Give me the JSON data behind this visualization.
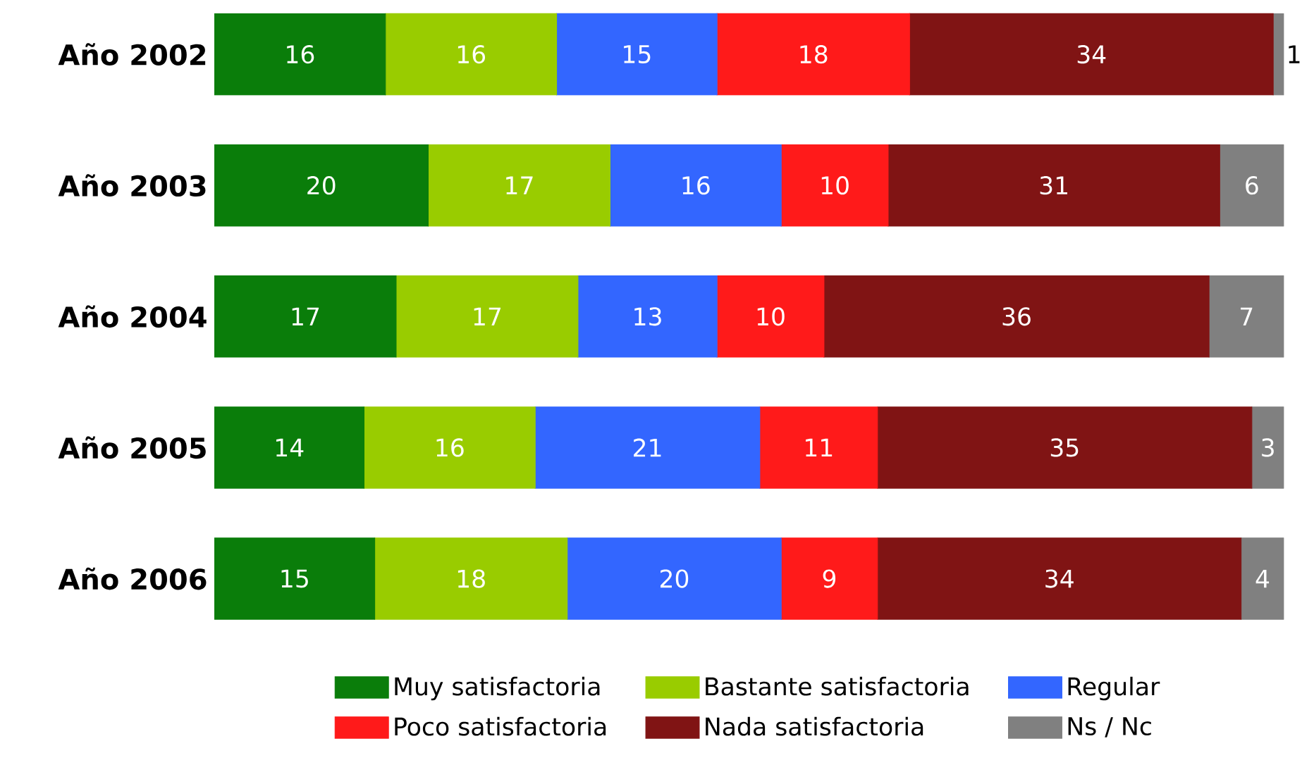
{
  "chart_data": {
    "type": "bar",
    "orientation": "horizontal",
    "stacked": true,
    "data_labels": true,
    "legend": "bottom",
    "tick_labels": "y",
    "categories": [
      "Año 2002",
      "Año 2003",
      "Año 2004",
      "Año 2005",
      "Año 2006"
    ],
    "series": [
      {
        "name": "Muy satisfactoria",
        "color": "#0a7d0a",
        "values": [
          16,
          20,
          17,
          14,
          15
        ]
      },
      {
        "name": "Bastante satisfactoria",
        "color": "#99cc00",
        "values": [
          16,
          17,
          17,
          16,
          18
        ]
      },
      {
        "name": "Regular",
        "color": "#3366ff",
        "values": [
          15,
          16,
          13,
          21,
          20
        ]
      },
      {
        "name": "Poco satisfactoria",
        "color": "#ff1a1a",
        "values": [
          18,
          10,
          10,
          11,
          9
        ]
      },
      {
        "name": "Nada satisfactoria",
        "color": "#801414",
        "values": [
          34,
          31,
          36,
          35,
          34
        ]
      },
      {
        "name": "Ns / Nc",
        "color": "#808080",
        "values": [
          1,
          6,
          7,
          3,
          4
        ]
      }
    ]
  }
}
